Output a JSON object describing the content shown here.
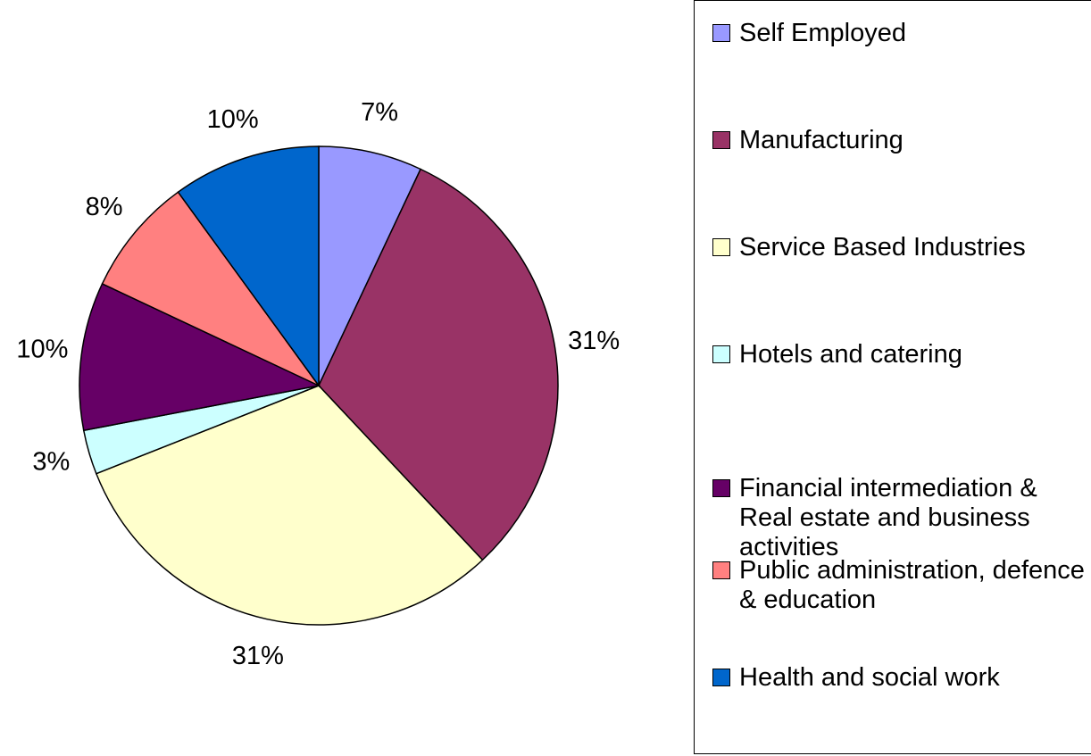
{
  "chart_data": {
    "type": "pie",
    "categories": [
      "Self Employed",
      "Manufacturing",
      "Service Based Industries",
      "Hotels and catering",
      "Financial intermediation & Real estate and business activities",
      "Public administration, defence & education",
      "Health and social work"
    ],
    "values": [
      7,
      31,
      31,
      3,
      10,
      8,
      10
    ],
    "value_labels": [
      "7%",
      "31%",
      "31%",
      "3%",
      "10%",
      "8%",
      "10%"
    ],
    "colors": [
      "#9999ff",
      "#993366",
      "#ffffcc",
      "#ccffff",
      "#660066",
      "#ff8080",
      "#0066cc"
    ],
    "legend": "right"
  }
}
